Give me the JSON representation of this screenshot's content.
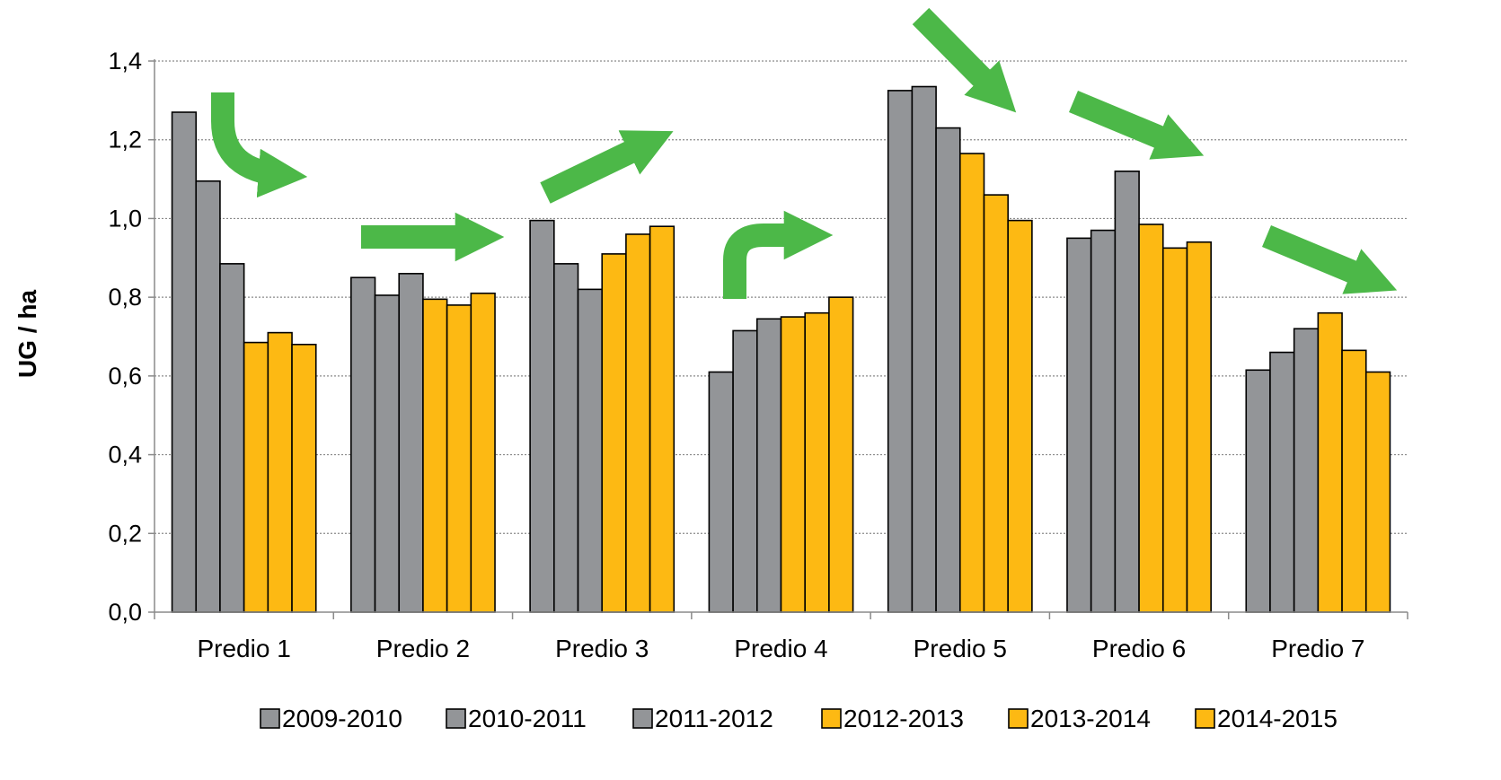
{
  "chart_data": {
    "type": "bar",
    "title": "",
    "xlabel": "",
    "ylabel": "UG / ha",
    "ylim": [
      0,
      1.4
    ],
    "yticks": [
      "0,0",
      "0,2",
      "0,4",
      "0,6",
      "0,8",
      "1,0",
      "1,2",
      "1,4"
    ],
    "grid": "horizontal dotted",
    "legend_position": "bottom",
    "categories": [
      "Predio 1",
      "Predio 2",
      "Predio 3",
      "Predio 4",
      "Predio 5",
      "Predio 6",
      "Predio 7"
    ],
    "series": [
      {
        "name": "2009-2010",
        "color": "#939598",
        "values": [
          1.27,
          0.85,
          0.995,
          0.61,
          1.325,
          0.95,
          0.615
        ]
      },
      {
        "name": "2010-2011",
        "color": "#939598",
        "values": [
          1.095,
          0.805,
          0.885,
          0.715,
          1.335,
          0.97,
          0.66
        ]
      },
      {
        "name": "2011-2012",
        "color": "#939598",
        "values": [
          0.885,
          0.86,
          0.82,
          0.745,
          1.23,
          1.12,
          0.72
        ]
      },
      {
        "name": "2012-2013",
        "color": "#FDB913",
        "values": [
          0.685,
          0.795,
          0.91,
          0.75,
          1.165,
          0.985,
          0.76
        ]
      },
      {
        "name": "2013-2014",
        "color": "#FDB913",
        "values": [
          0.71,
          0.78,
          0.96,
          0.76,
          1.06,
          0.925,
          0.665
        ]
      },
      {
        "name": "2014-2015",
        "color": "#FDB913",
        "values": [
          0.68,
          0.81,
          0.98,
          0.8,
          0.995,
          0.94,
          0.61
        ]
      }
    ],
    "annotations": [
      {
        "category": "Predio 1",
        "shape": "curved-arrow-down-right",
        "color": "#4CB848"
      },
      {
        "category": "Predio 2",
        "shape": "arrow-right",
        "color": "#4CB848"
      },
      {
        "category": "Predio 3",
        "shape": "arrow-up-right",
        "color": "#4CB848"
      },
      {
        "category": "Predio 4",
        "shape": "curved-arrow-up-right",
        "color": "#4CB848"
      },
      {
        "category": "Predio 5",
        "shape": "arrow-down-right",
        "color": "#4CB848"
      },
      {
        "category": "Predio 6",
        "shape": "arrow-down-right",
        "color": "#4CB848"
      },
      {
        "category": "Predio 7",
        "shape": "arrow-down-right",
        "color": "#4CB848"
      }
    ]
  }
}
